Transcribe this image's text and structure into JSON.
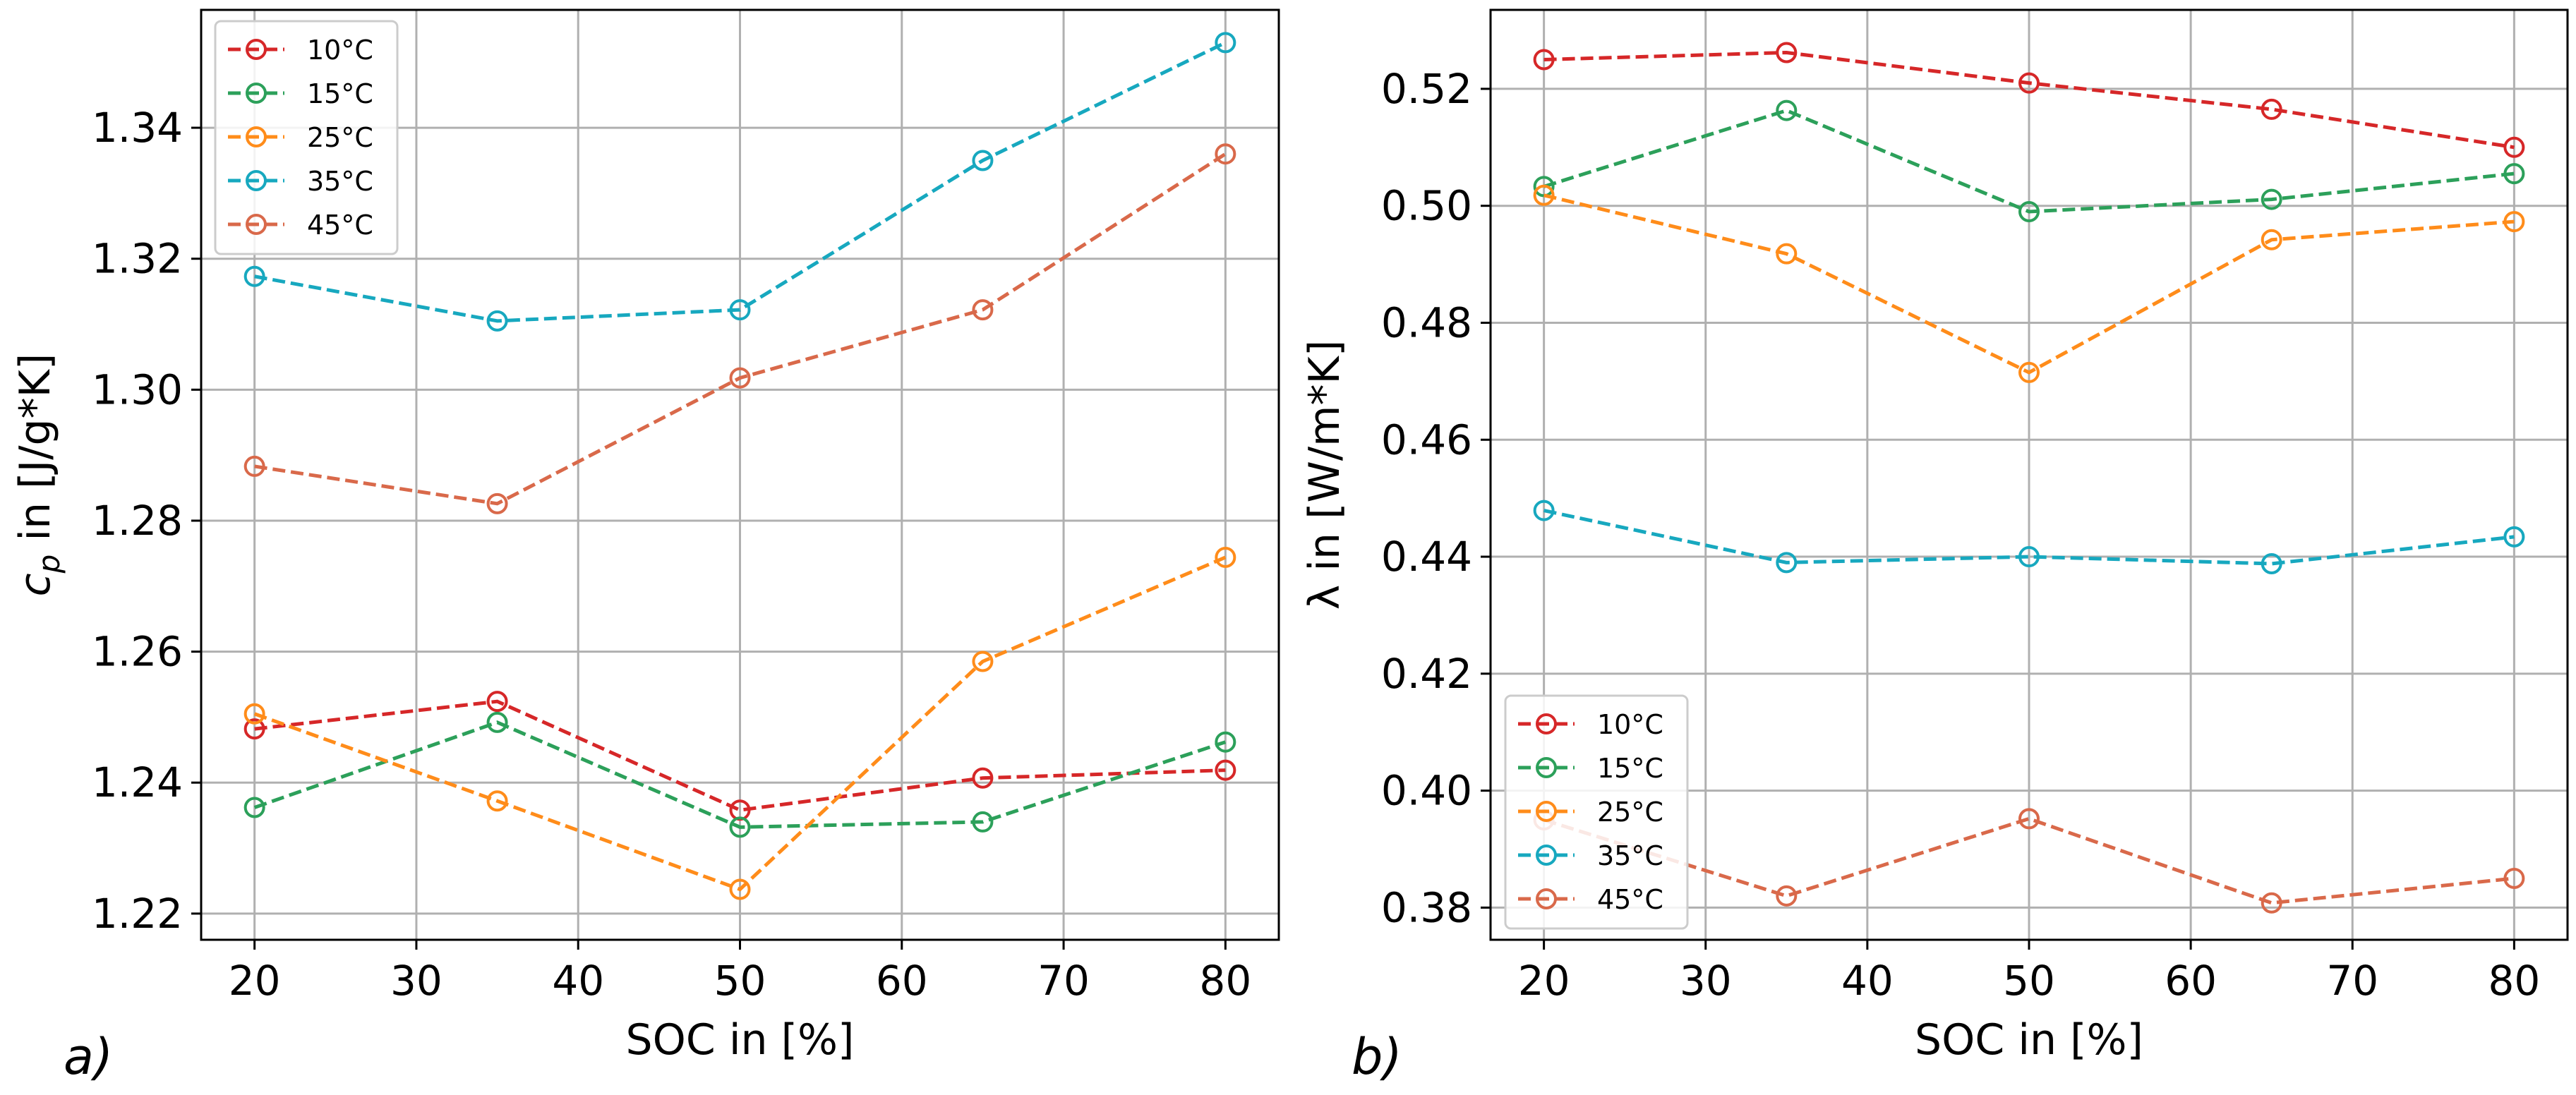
{
  "chart_data": [
    {
      "type": "line",
      "panel_label": "a)",
      "xlabel": "SOC in [%]",
      "ylabel": "c_p in [J/g*K]",
      "ylabel_main": "c",
      "ylabel_sub": "p",
      "ylabel_rest": " in [J/g*K]",
      "x": [
        20,
        35,
        50,
        65,
        80
      ],
      "xlim": [
        16.7,
        83.3
      ],
      "ylim": [
        1.216,
        1.358
      ],
      "xticks": [
        20,
        30,
        40,
        50,
        60,
        70,
        80
      ],
      "yticks": [
        1.22,
        1.24,
        1.26,
        1.28,
        1.3,
        1.32,
        1.34
      ],
      "ytick_labels": [
        "1.22",
        "1.24",
        "1.26",
        "1.28",
        "1.30",
        "1.32",
        "1.34"
      ],
      "grid": true,
      "legend_position": "top-left",
      "series": [
        {
          "name": "10°C",
          "color": "#d62728",
          "values": [
            1.2482,
            1.2524,
            1.2358,
            1.2407,
            1.2419
          ]
        },
        {
          "name": "15°C",
          "color": "#2ca05a",
          "values": [
            1.2362,
            1.2492,
            1.2332,
            1.234,
            1.2462
          ]
        },
        {
          "name": "25°C",
          "color": "#ff8c1a",
          "values": [
            1.2505,
            1.2372,
            1.2237,
            1.2585,
            1.2744
          ]
        },
        {
          "name": "35°C",
          "color": "#17a8bf",
          "values": [
            1.3173,
            1.3105,
            1.3122,
            1.335,
            1.353
          ]
        },
        {
          "name": "45°C",
          "color": "#d9694a",
          "values": [
            1.2883,
            1.2826,
            1.3018,
            1.3122,
            1.336
          ]
        }
      ]
    },
    {
      "type": "line",
      "panel_label": "b)",
      "xlabel": "SOC in [%]",
      "ylabel": "λ in [W/m*K]",
      "x": [
        20,
        35,
        50,
        65,
        80
      ],
      "xlim": [
        16.7,
        83.3
      ],
      "ylim": [
        0.3745,
        0.5335
      ],
      "xticks": [
        20,
        30,
        40,
        50,
        60,
        70,
        80
      ],
      "yticks": [
        0.38,
        0.4,
        0.42,
        0.44,
        0.46,
        0.48,
        0.5,
        0.52
      ],
      "ytick_labels": [
        "0.38",
        "0.40",
        "0.42",
        "0.44",
        "0.46",
        "0.48",
        "0.50",
        "0.52"
      ],
      "grid": true,
      "legend_position": "bottom-left",
      "series": [
        {
          "name": "10°C",
          "color": "#d62728",
          "values": [
            0.525,
            0.5262,
            0.521,
            0.5165,
            0.51
          ]
        },
        {
          "name": "15°C",
          "color": "#2ca05a",
          "values": [
            0.5033,
            0.5163,
            0.499,
            0.5011,
            0.5055
          ]
        },
        {
          "name": "25°C",
          "color": "#ff8c1a",
          "values": [
            0.5018,
            0.4918,
            0.4715,
            0.4942,
            0.4973
          ]
        },
        {
          "name": "35°C",
          "color": "#17a8bf",
          "values": [
            0.4479,
            0.439,
            0.44,
            0.4388,
            0.4434
          ]
        },
        {
          "name": "45°C",
          "color": "#d9694a",
          "values": [
            0.395,
            0.382,
            0.3952,
            0.3808,
            0.385
          ]
        }
      ]
    }
  ]
}
